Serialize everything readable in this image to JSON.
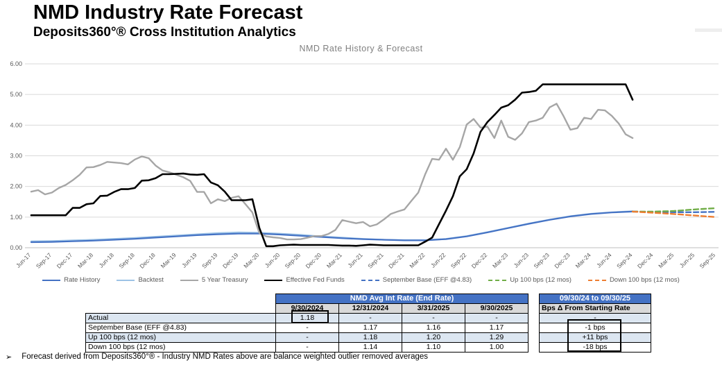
{
  "header": {
    "title": "NMD Industry Rate Forecast",
    "subtitle": "Deposits360°® Cross Institution Analytics"
  },
  "footer": {
    "bullet": "➢",
    "text": "Forecast derived from Deposits360°® - Industry NMD Rates above are balance weighted outlier removed averages"
  },
  "colors": {
    "header_blue": "#4472C4",
    "header_gray": "#D9D9D9",
    "row_alt_blue": "#DCE6F1",
    "grid_line": "#D9D9D9",
    "axis_line": "#BFBFBF",
    "axis_text": "#595959",
    "chart_title_gray": "#7f7f7f"
  },
  "chart_data": {
    "type": "line",
    "title": "NMD Rate History & Forecast",
    "xlabel": "",
    "ylabel": "",
    "ylim": [
      0,
      6
    ],
    "ytick_labels": [
      "0.00",
      "1.00",
      "2.00",
      "3.00",
      "4.00",
      "5.00",
      "6.00"
    ],
    "grid": true,
    "legend_position": "bottom",
    "categories": [
      "Jun-17",
      "Sep-17",
      "Dec-17",
      "Mar-18",
      "Jun-18",
      "Sep-18",
      "Dec-18",
      "Mar-19",
      "Jun-19",
      "Sep-19",
      "Dec-19",
      "Mar-20",
      "Jun-20",
      "Sep-20",
      "Dec-20",
      "Mar-21",
      "Jun-21",
      "Sep-21",
      "Dec-21",
      "Mar-22",
      "Jun-22",
      "Sep-22",
      "Dec-22",
      "Mar-23",
      "Jun-23",
      "Sep-23",
      "Dec-23",
      "Mar-24",
      "Jun-24",
      "Sep-24",
      "Dec-24",
      "Mar-25",
      "Jun-25",
      "Sep-25"
    ],
    "x_unit": "quarter-index from Jun-17",
    "series": [
      {
        "name": "Backtest",
        "color": "#9DC3E6",
        "style": "solid",
        "width": 2.2,
        "x_start": 0,
        "x_interval": 1,
        "values": [
          0.21,
          0.22,
          0.24,
          0.26,
          0.29,
          0.32,
          0.36,
          0.4,
          0.44,
          0.48,
          0.5,
          0.49,
          0.46,
          0.42,
          0.37,
          0.33,
          0.29,
          0.26,
          0.25,
          0.25,
          0.29,
          0.38,
          0.51,
          0.65,
          0.79,
          0.92,
          1.03,
          1.11,
          1.16,
          1.19
        ]
      },
      {
        "name": "Rate History",
        "color": "#4472C4",
        "style": "solid",
        "width": 2.2,
        "x_start": 0,
        "x_interval": 1,
        "values": [
          0.18,
          0.19,
          0.21,
          0.23,
          0.26,
          0.29,
          0.33,
          0.37,
          0.41,
          0.44,
          0.46,
          0.46,
          0.43,
          0.39,
          0.35,
          0.31,
          0.28,
          0.26,
          0.24,
          0.24,
          0.28,
          0.37,
          0.5,
          0.64,
          0.78,
          0.91,
          1.02,
          1.1,
          1.15,
          1.18
        ]
      },
      {
        "name": "5 Year Treasury",
        "color": "#A6A6A6",
        "style": "solid",
        "width": 2.4,
        "x_start": 0,
        "x_interval": 0.333333,
        "values": [
          1.83,
          1.88,
          1.74,
          1.8,
          1.95,
          2.05,
          2.2,
          2.38,
          2.62,
          2.63,
          2.7,
          2.8,
          2.78,
          2.76,
          2.72,
          2.88,
          2.98,
          2.92,
          2.68,
          2.52,
          2.46,
          2.38,
          2.3,
          2.18,
          1.82,
          1.82,
          1.45,
          1.58,
          1.52,
          1.63,
          1.68,
          1.42,
          1.15,
          0.48,
          0.37,
          0.34,
          0.32,
          0.27,
          0.27,
          0.28,
          0.33,
          0.38,
          0.38,
          0.45,
          0.58,
          0.9,
          0.85,
          0.8,
          0.84,
          0.7,
          0.76,
          0.92,
          1.1,
          1.18,
          1.25,
          1.53,
          1.8,
          2.4,
          2.9,
          2.87,
          3.23,
          2.87,
          3.28,
          4.02,
          4.2,
          3.92,
          3.95,
          3.58,
          4.15,
          3.62,
          3.52,
          3.73,
          4.1,
          4.15,
          4.24,
          4.58,
          4.7,
          4.3,
          3.85,
          3.9,
          4.24,
          4.2,
          4.5,
          4.48,
          4.3,
          4.05,
          3.7,
          3.58
        ]
      },
      {
        "name": "Effective Fed Funds",
        "color": "#000000",
        "style": "solid",
        "width": 2.6,
        "x_start": 0,
        "x_interval": 0.333333,
        "values": [
          1.06,
          1.06,
          1.06,
          1.06,
          1.06,
          1.06,
          1.3,
          1.3,
          1.42,
          1.45,
          1.69,
          1.7,
          1.82,
          1.91,
          1.91,
          1.95,
          2.19,
          2.2,
          2.27,
          2.4,
          2.4,
          2.41,
          2.42,
          2.39,
          2.38,
          2.4,
          2.13,
          2.04,
          1.83,
          1.55,
          1.55,
          1.55,
          1.58,
          0.65,
          0.05,
          0.05,
          0.08,
          0.09,
          0.1,
          0.09,
          0.09,
          0.09,
          0.09,
          0.09,
          0.08,
          0.07,
          0.07,
          0.06,
          0.08,
          0.1,
          0.09,
          0.08,
          0.08,
          0.08,
          0.08,
          0.08,
          0.08,
          0.2,
          0.33,
          0.77,
          1.21,
          1.68,
          2.33,
          2.56,
          3.08,
          3.78,
          4.1,
          4.33,
          4.57,
          4.65,
          4.83,
          5.06,
          5.08,
          5.12,
          5.33,
          5.33,
          5.33,
          5.33,
          5.33,
          5.33,
          5.33,
          5.33,
          5.33,
          5.33,
          5.33,
          5.33,
          5.33,
          4.83
        ]
      },
      {
        "name": "September Base (EFF @4.83)",
        "color": "#4472C4",
        "style": "dashed",
        "width": 2.4,
        "x_start": 29,
        "x_interval": 1,
        "values": [
          1.18,
          1.17,
          1.16,
          1.16,
          1.17
        ]
      },
      {
        "name": "Up 100 bps (12 mos)",
        "color": "#70AD47",
        "style": "dashed",
        "width": 2.4,
        "x_start": 29,
        "x_interval": 1,
        "values": [
          1.18,
          1.18,
          1.2,
          1.25,
          1.29
        ]
      },
      {
        "name": "Down 100 bps (12 mos)",
        "color": "#ED7D31",
        "style": "dashed",
        "width": 2.4,
        "x_start": 29,
        "x_interval": 1,
        "values": [
          1.18,
          1.14,
          1.1,
          1.05,
          1.0
        ]
      }
    ]
  },
  "tables": {
    "rates": {
      "title": "NMD Avg Int Rate (End Rate)",
      "columns": [
        "9/30/2024",
        "12/31/2024",
        "3/31/2025",
        "9/30/2025"
      ],
      "rows": [
        {
          "label": "Actual",
          "values": [
            "1.18",
            "-",
            "-",
            "-"
          ]
        },
        {
          "label": "September Base (EFF @4.83)",
          "values": [
            "-",
            "1.17",
            "1.16",
            "1.17"
          ]
        },
        {
          "label": "Up 100 bps (12 mos)",
          "values": [
            "-",
            "1.18",
            "1.20",
            "1.29"
          ]
        },
        {
          "label": "Down 100 bps (12 mos)",
          "values": [
            "-",
            "1.14",
            "1.10",
            "1.00"
          ]
        }
      ]
    },
    "bps": {
      "title": "09/30/24 to 09/30/25",
      "subtitle": "Bps Δ From Starting Rate",
      "values": [
        "-",
        "-1 bps",
        "+11 bps",
        "-18 bps"
      ]
    }
  }
}
